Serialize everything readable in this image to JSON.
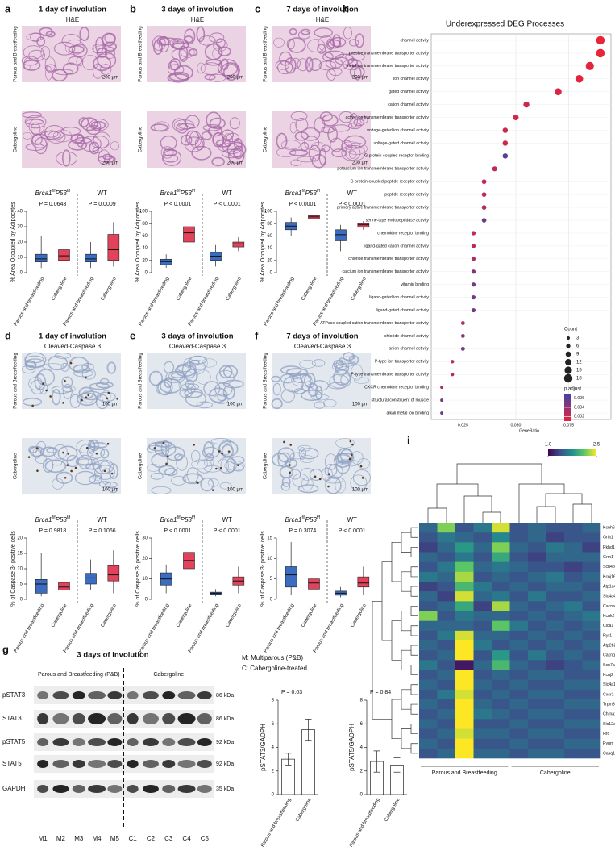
{
  "panels": [
    {
      "letter": "a",
      "title": "1 day of involution",
      "stain": "H&E",
      "row_labels": [
        "Parous and Breastfeeding",
        "Cabergoline"
      ],
      "scale_bars": [
        "200 µm",
        "200 µm"
      ]
    },
    {
      "letter": "b",
      "title": "3 days of involution",
      "stain": "H&E",
      "row_labels": [
        "Parous and Breastfeeding",
        "Cabergoline"
      ],
      "scale_bars": [
        "200 µm",
        "200 µm"
      ]
    },
    {
      "letter": "c",
      "title": "7 days of involution",
      "stain": "H&E",
      "row_labels": [
        "Parous and Breastfeeding",
        "Cabergoline"
      ],
      "scale_bars": [
        "200 µm",
        "200 µm"
      ]
    },
    {
      "letter": "d",
      "title": "1 day of involution",
      "stain": "Cleaved-Caspase 3",
      "row_labels": [
        "Parous and Breastfeeding",
        "Cabergoline"
      ],
      "scale_bars": [
        "100 µm",
        "100 µm"
      ]
    },
    {
      "letter": "e",
      "title": "3 days of involution",
      "stain": "Cleaved-Caspase 3",
      "row_labels": [
        "Parous and Breastfeeding",
        "Cabergoline"
      ],
      "scale_bars": [
        "100 µm",
        "100 µm"
      ]
    },
    {
      "letter": "f",
      "title": "7 days of involution",
      "stain": "Cleaved-Caspase 3",
      "row_labels": [
        "Parous and Breastfeeding",
        "Cabergoline"
      ],
      "scale_bars": [
        "100 µm",
        "100 µm"
      ]
    }
  ],
  "blot": {
    "letter": "g",
    "title": "3 days of involution",
    "groups": [
      "Parous and Breastfeeding (P&B)",
      "Cabergoline"
    ],
    "rows": [
      "pSTAT3",
      "STAT3",
      "pSTAT5",
      "STAT5",
      "GAPDH"
    ],
    "sizes": [
      "86 kDa",
      "86 kDa",
      "92 kDa",
      "92 kDa",
      "35 kDa"
    ],
    "lanes": [
      "M1",
      "M2",
      "M3",
      "M4",
      "M5",
      "C1",
      "C2",
      "C3",
      "C4",
      "C5"
    ],
    "legend": [
      "M: Multiparous (P&B)",
      "C: Cabergoline-treated"
    ]
  },
  "chart_data": [
    {
      "type": "box",
      "genotype": [
        "Brca1",
        "f/f",
        "P53",
        "f/f",
        "WT"
      ],
      "p_values": [
        "P = 0.0643",
        "P = 0.0009"
      ],
      "ylabel": "% Area Occupied by Adipocytes",
      "categories": [
        "Parous and breastfeeding",
        "Cabergoline",
        "Parous and breastfeeding",
        "Cabergoline"
      ],
      "colors": [
        "#3b6cc0",
        "#e2435a",
        "#3b6cc0",
        "#e2435a"
      ],
      "boxes": [
        {
          "min": 3,
          "q1": 7,
          "median": 9,
          "q3": 12,
          "max": 24
        },
        {
          "min": 4,
          "q1": 8,
          "median": 11,
          "q3": 15,
          "max": 25
        },
        {
          "min": 3,
          "q1": 7,
          "median": 9,
          "q3": 12,
          "max": 20
        },
        {
          "min": 4,
          "q1": 8,
          "median": 15,
          "q3": 25,
          "max": 33
        }
      ],
      "ylim": [
        0,
        40
      ],
      "yticks": [
        0,
        10,
        20,
        30,
        40
      ]
    },
    {
      "type": "box",
      "genotype": [
        "Brca1",
        "f/f",
        "P53",
        "f/f",
        "WT"
      ],
      "p_values": [
        "P < 0.0001",
        "P < 0.0001"
      ],
      "ylabel": "% Area Occupied by Adipocytes",
      "categories": [
        "Parous and breastfeeding",
        "Cabergoline",
        "Parous and breastfeeding",
        "Cabergoline"
      ],
      "colors": [
        "#3b6cc0",
        "#e2435a",
        "#3b6cc0",
        "#e2435a"
      ],
      "boxes": [
        {
          "min": 8,
          "q1": 13,
          "median": 18,
          "q3": 22,
          "max": 30
        },
        {
          "min": 30,
          "q1": 50,
          "median": 65,
          "q3": 75,
          "max": 88
        },
        {
          "min": 10,
          "q1": 20,
          "median": 27,
          "q3": 33,
          "max": 45
        },
        {
          "min": 35,
          "q1": 42,
          "median": 47,
          "q3": 50,
          "max": 58
        }
      ],
      "ylim": [
        0,
        100
      ],
      "yticks": [
        0,
        20,
        40,
        60,
        80,
        100
      ]
    },
    {
      "type": "box",
      "genotype": [
        "Brca1",
        "f/f",
        "P53",
        "f/f",
        "WT"
      ],
      "p_values": [
        "P < 0.0001",
        "P < 0.0001"
      ],
      "ylabel": "% Area Occupied by Adipocytes",
      "categories": [
        "Parous and breastfeeding",
        "Cabergoline",
        "Parous and breastfeeding",
        "Cabergoline"
      ],
      "colors": [
        "#3b6cc0",
        "#e2435a",
        "#3b6cc0",
        "#e2435a"
      ],
      "boxes": [
        {
          "min": 60,
          "q1": 70,
          "median": 76,
          "q3": 82,
          "max": 90
        },
        {
          "min": 85,
          "q1": 88,
          "median": 91,
          "q3": 93,
          "max": 96
        },
        {
          "min": 35,
          "q1": 52,
          "median": 62,
          "q3": 70,
          "max": 78
        },
        {
          "min": 70,
          "q1": 74,
          "median": 78,
          "q3": 80,
          "max": 84
        }
      ],
      "ylim": [
        0,
        100
      ],
      "yticks": [
        0,
        20,
        40,
        60,
        80,
        100
      ]
    },
    {
      "type": "box",
      "genotype": [
        "Brca1",
        "f/f",
        "P53",
        "f/f",
        "WT"
      ],
      "p_values": [
        "P = 0.9818",
        "P = 0.1066"
      ],
      "ylabel": "% of Caspase 3- positive cells",
      "categories": [
        "Parous and breastfeeding",
        "Cabergoline",
        "Parous and breastfeeding",
        "Cabergoline"
      ],
      "colors": [
        "#3b6cc0",
        "#e2435a",
        "#3b6cc0",
        "#e2435a"
      ],
      "boxes": [
        {
          "min": 1,
          "q1": 2,
          "median": 5,
          "q3": 6.5,
          "max": 15
        },
        {
          "min": 1.5,
          "q1": 3,
          "median": 4,
          "q3": 5.5,
          "max": 8
        },
        {
          "min": 3,
          "q1": 5,
          "median": 7,
          "q3": 8.5,
          "max": 13
        },
        {
          "min": 2,
          "q1": 6,
          "median": 8,
          "q3": 11,
          "max": 16
        }
      ],
      "ylim": [
        0,
        20
      ],
      "yticks": [
        0,
        5,
        10,
        15,
        20
      ]
    },
    {
      "type": "box",
      "genotype": [
        "Brca1",
        "f/f",
        "P53",
        "f/f",
        "WT"
      ],
      "p_values": [
        "P < 0.0001",
        "P < 0.0001"
      ],
      "ylabel": "% of Caspase 3- positive cells",
      "categories": [
        "Parous and breastfeeding",
        "Cabergoline",
        "Parous and breastfeeding",
        "Cabergoline"
      ],
      "colors": [
        "#3b6cc0",
        "#e2435a",
        "#3b6cc0",
        "#e2435a"
      ],
      "boxes": [
        {
          "min": 3,
          "q1": 7,
          "median": 10,
          "q3": 13,
          "max": 17
        },
        {
          "min": 10,
          "q1": 15,
          "median": 19,
          "q3": 23,
          "max": 28
        },
        {
          "min": 1.5,
          "q1": 2.5,
          "median": 3,
          "q3": 3.5,
          "max": 5
        },
        {
          "min": 3,
          "q1": 7,
          "median": 9,
          "q3": 11,
          "max": 16
        }
      ],
      "ylim": [
        0,
        30
      ],
      "yticks": [
        0,
        10,
        20,
        30
      ]
    },
    {
      "type": "box",
      "genotype": [
        "Brca1",
        "f/f",
        "P53",
        "f/f",
        "WT"
      ],
      "p_values": [
        "P = 0.3074",
        "P < 0.0001"
      ],
      "ylabel": "% of Caspase 3- positive cells",
      "categories": [
        "Parous and breastfeeding",
        "Cabergoline",
        "Parous and breastfeeding",
        "Cabergoline"
      ],
      "colors": [
        "#3b6cc0",
        "#e2435a",
        "#3b6cc0",
        "#e2435a"
      ],
      "boxes": [
        {
          "min": 1,
          "q1": 3,
          "median": 6,
          "q3": 8,
          "max": 14
        },
        {
          "min": 1,
          "q1": 2.5,
          "median": 4,
          "q3": 5,
          "max": 9
        },
        {
          "min": 0.5,
          "q1": 1,
          "median": 1.5,
          "q3": 2,
          "max": 3
        },
        {
          "min": 1,
          "q1": 3,
          "median": 4,
          "q3": 5.5,
          "max": 8
        }
      ],
      "ylim": [
        0,
        15
      ],
      "yticks": [
        0,
        5,
        10,
        15
      ]
    },
    {
      "type": "bar",
      "p_value": "P = 0.03",
      "ylabel": "pSTAT3/GADPH",
      "categories": [
        "Parous and breastfeeding",
        "Cabergoline"
      ],
      "values": [
        3.0,
        5.5
      ],
      "errors": [
        0.5,
        0.9
      ],
      "color": "#ffffff",
      "ylim": [
        0,
        8
      ],
      "yticks": [
        0,
        2,
        4,
        6,
        8
      ]
    },
    {
      "type": "bar",
      "p_value": "P = 0.84",
      "ylabel": "pSTAT5/GADPH",
      "categories": [
        "Parous and breastfeeding",
        "Cabergoline"
      ],
      "values": [
        2.8,
        2.5
      ],
      "errors": [
        0.9,
        0.6
      ],
      "color": "#ffffff",
      "ylim": [
        0,
        8
      ],
      "yticks": [
        0,
        2,
        4,
        6,
        8
      ]
    },
    {
      "type": "dot",
      "letter": "h",
      "title": "Underexpressed DEG Processes",
      "categories": [
        "channel activity",
        "passive transmembrane transporter activity",
        "metal ion transmembrane transporter activity",
        "ion channel activity",
        "gated channel activity",
        "cation channel activity",
        "active ion transmembrane transporter activity",
        "voltage-gated ion channel activity",
        "voltage-gated channel activity",
        "G protein-coupled receptor binding",
        "potassium ion transmembrane transporter activity",
        "G protein-coupled peptide receptor activity",
        "peptide receptor activity",
        "primary active transmembrane transporter activity",
        "serine-type endopeptidase activity",
        "chemokine receptor binding",
        "ligand-gated cation channel activity",
        "chloride transmembrane transporter activity",
        "calcium ion transmembrane transporter activity",
        "vitamin binding",
        "ligand-gated ion channel activity",
        "ligand-gated channel activity",
        "ATPase-coupled cation transmembrane transporter activity",
        "chloride channel activity",
        "anion channel activity",
        "P-type ion transporter activity",
        "P-type transmembrane transporter activity",
        "CXCR chemokine receptor binding",
        "structural constituent of muscle",
        "alkali metal ion binding"
      ],
      "gene_ratio": [
        0.09,
        0.09,
        0.085,
        0.08,
        0.07,
        0.055,
        0.05,
        0.045,
        0.045,
        0.045,
        0.04,
        0.035,
        0.035,
        0.035,
        0.035,
        0.03,
        0.03,
        0.03,
        0.03,
        0.03,
        0.03,
        0.03,
        0.025,
        0.025,
        0.025,
        0.02,
        0.02,
        0.015,
        0.015,
        0.015
      ],
      "count": [
        18,
        18,
        17,
        16,
        14,
        11,
        10,
        9,
        9,
        9,
        8,
        7,
        7,
        7,
        7,
        6,
        6,
        6,
        6,
        6,
        6,
        6,
        5,
        5,
        5,
        4,
        4,
        3,
        3,
        3
      ],
      "p_adjust": [
        0.001,
        0.001,
        0.0012,
        0.0012,
        0.0015,
        0.002,
        0.0018,
        0.002,
        0.002,
        0.006,
        0.0025,
        0.0025,
        0.0025,
        0.003,
        0.0055,
        0.0025,
        0.0028,
        0.003,
        0.0045,
        0.005,
        0.005,
        0.005,
        0.003,
        0.0045,
        0.005,
        0.0025,
        0.0025,
        0.003,
        0.005,
        0.0055
      ],
      "xlabel": "GeneRatio",
      "xlim": [
        0.01,
        0.095
      ],
      "xticks": [
        0.025,
        {
          "value": 0.05,
          "label": "0.050"
        },
        0.075
      ],
      "count_title": "Count",
      "legend_counts": [
        3,
        6,
        9,
        12,
        15,
        18
      ],
      "p_adjust_title": "p.adjust",
      "p_adjust_ticks": [
        0.006,
        0.004,
        0.002
      ],
      "p_adjust_lim": [
        0.001,
        0.007
      ],
      "p_adjust_colors": [
        "#e8233a",
        "#3a44a8"
      ]
    },
    {
      "type": "heatmap",
      "letter": "i",
      "rows": [
        "Kcnh6",
        "Gria1",
        "Pkhd1",
        "Grm1",
        "Scn4b",
        "Kcnj16",
        "Atp1a4",
        "Slc4a4",
        "Cacna1s",
        "Kcnk2",
        "Clca1",
        "Ryr1",
        "Atp2b2",
        "Cacng1",
        "Scn7a",
        "Kcnj2",
        "Slc4a1",
        "Cxcr1",
        "Trpm3",
        "Chrna1",
        "Slc12a1",
        "Hrc",
        "Pygm",
        "Casq1"
      ],
      "values": [
        [
          1.5,
          2.2,
          1.4,
          1.6,
          2.4,
          1.4,
          1.5,
          1.4,
          1.4,
          1.5
        ],
        [
          1.4,
          1.6,
          1.5,
          1.4,
          1.7,
          1.4,
          1.5,
          1.3,
          1.4,
          1.4
        ],
        [
          1.3,
          1.5,
          1.8,
          1.5,
          2.2,
          1.5,
          1.4,
          1.6,
          1.5,
          1.3
        ],
        [
          1.5,
          1.4,
          1.6,
          1.4,
          1.9,
          1.4,
          1.3,
          1.5,
          1.5,
          1.5
        ],
        [
          1.4,
          1.6,
          2.1,
          1.5,
          1.6,
          1.5,
          1.4,
          1.4,
          1.3,
          1.4
        ],
        [
          1.6,
          1.5,
          2.3,
          1.4,
          1.5,
          1.4,
          1.5,
          1.6,
          1.4,
          1.5
        ],
        [
          1.3,
          1.4,
          2.0,
          1.6,
          1.4,
          1.5,
          1.4,
          1.5,
          1.5,
          1.4
        ],
        [
          1.5,
          1.3,
          2.4,
          1.5,
          1.6,
          1.4,
          1.6,
          1.4,
          1.4,
          1.5
        ],
        [
          1.4,
          1.5,
          1.9,
          1.3,
          2.3,
          1.5,
          1.4,
          1.5,
          1.6,
          1.4
        ],
        [
          2.2,
          1.4,
          1.6,
          1.5,
          1.5,
          1.4,
          1.5,
          1.4,
          1.5,
          1.6
        ],
        [
          1.5,
          1.5,
          1.5,
          1.4,
          2.1,
          1.6,
          1.4,
          1.5,
          1.4,
          1.5
        ],
        [
          1.4,
          1.6,
          2.4,
          1.5,
          1.5,
          1.4,
          1.5,
          1.4,
          1.5,
          1.4
        ],
        [
          1.5,
          1.4,
          2.5,
          1.6,
          1.4,
          1.5,
          1.4,
          1.5,
          1.4,
          1.5
        ],
        [
          1.4,
          1.5,
          2.5,
          1.4,
          1.8,
          1.4,
          1.6,
          1.4,
          1.5,
          1.4
        ],
        [
          1.6,
          1.4,
          1.1,
          1.5,
          2.0,
          1.5,
          1.4,
          1.3,
          1.4,
          1.5
        ],
        [
          1.4,
          1.5,
          2.5,
          1.4,
          1.5,
          1.4,
          1.5,
          1.5,
          1.4,
          1.4
        ],
        [
          1.5,
          1.4,
          2.5,
          1.5,
          1.4,
          1.5,
          1.4,
          1.4,
          1.5,
          1.5
        ],
        [
          1.4,
          1.6,
          2.4,
          1.4,
          1.5,
          1.4,
          1.5,
          1.5,
          1.4,
          1.4
        ],
        [
          1.5,
          1.4,
          2.5,
          1.5,
          1.4,
          1.5,
          1.4,
          1.4,
          1.5,
          1.5
        ],
        [
          1.4,
          1.5,
          2.5,
          1.6,
          1.5,
          1.4,
          1.5,
          1.5,
          1.4,
          1.4
        ],
        [
          1.5,
          1.4,
          2.5,
          1.4,
          1.4,
          1.5,
          1.4,
          1.4,
          1.5,
          1.5
        ],
        [
          1.4,
          1.5,
          2.4,
          1.5,
          1.5,
          1.4,
          1.5,
          1.5,
          1.4,
          1.4
        ],
        [
          1.5,
          1.4,
          2.5,
          1.4,
          1.4,
          1.5,
          1.4,
          1.4,
          1.5,
          1.5
        ],
        [
          1.4,
          1.5,
          2.5,
          1.5,
          1.5,
          1.4,
          1.5,
          1.5,
          1.4,
          1.4
        ]
      ],
      "groups": [
        "Parous and Breastfeeding",
        "Cabergoline"
      ],
      "clim": [
        1,
        2.5
      ],
      "cticks": [
        {
          "value": 1,
          "label": "1.0"
        },
        2.5
      ],
      "colormap": [
        "#440154",
        "#3b528b",
        "#21908d",
        "#5ec962",
        "#fde725"
      ]
    }
  ]
}
